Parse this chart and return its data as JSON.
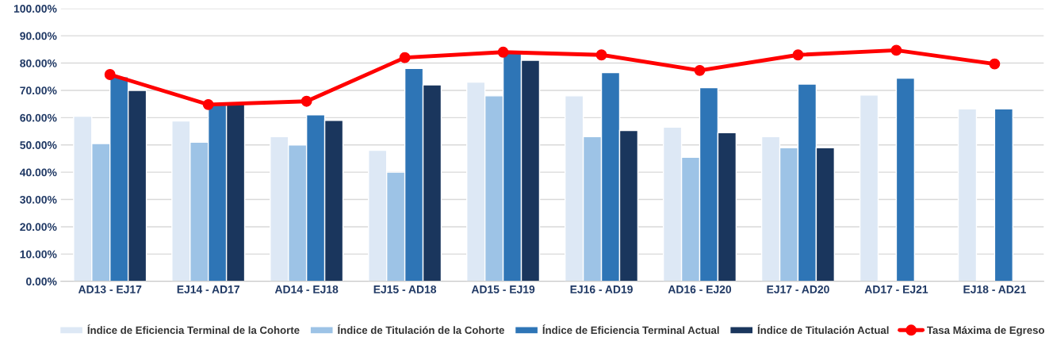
{
  "chart_data": {
    "type": "bar",
    "categories": [
      "AD13 - EJ17",
      "EJ14 - AD17",
      "AD14 - EJ18",
      "EJ15 - AD18",
      "AD15 - EJ19",
      "EJ16 - AD19",
      "AD16 - EJ20",
      "EJ17 - AD20",
      "AD17 - EJ21",
      "EJ18 - AD21"
    ],
    "series": [
      {
        "name": "Índice de Eficiencia Terminal de la Cohorte",
        "color": "#dde8f5",
        "values": [
          60.5,
          58.8,
          53,
          48,
          73,
          68,
          56.5,
          53,
          68.3,
          63.2
        ]
      },
      {
        "name": "Índice de Titulación de la Cohorte",
        "color": "#9dc3e6",
        "values": [
          50.5,
          51,
          50,
          40,
          68,
          53,
          45.5,
          49,
          null,
          null
        ]
      },
      {
        "name": "Índice de Eficiencia Terminal Actual",
        "color": "#2e75b6",
        "values": [
          75,
          65,
          61,
          78,
          84,
          76.5,
          71,
          72.3,
          74.5,
          63.2
        ]
      },
      {
        "name": "Índice de Titulación Actual",
        "color": "#1a365d",
        "values": [
          70,
          65,
          59,
          72,
          81,
          55.3,
          54.5,
          49,
          null,
          null
        ]
      },
      {
        "name": "Tasa Máxima de Egreso",
        "color": "#ff0000",
        "type": "line",
        "marker": "circle",
        "line_style": "solid",
        "values": [
          75.8,
          64.8,
          66,
          82,
          84,
          83,
          77.3,
          83,
          84.7,
          79.7
        ]
      }
    ],
    "ylim": [
      0,
      100
    ],
    "yticks": [
      {
        "value": 0,
        "label": "0.00%"
      },
      {
        "value": 10,
        "label": "10.00%"
      },
      {
        "value": 20,
        "label": "20.00%"
      },
      {
        "value": 30,
        "label": "30.00%"
      },
      {
        "value": 40,
        "label": "40.00%"
      },
      {
        "value": 50,
        "label": "50.00%"
      },
      {
        "value": 60,
        "label": "60.00%"
      },
      {
        "value": 70,
        "label": "70.00%"
      },
      {
        "value": 80,
        "label": "80.00%"
      },
      {
        "value": 90,
        "label": "90.00%"
      },
      {
        "value": 100,
        "label": "100.00%"
      }
    ],
    "grid": "y",
    "legend": "bottom"
  }
}
